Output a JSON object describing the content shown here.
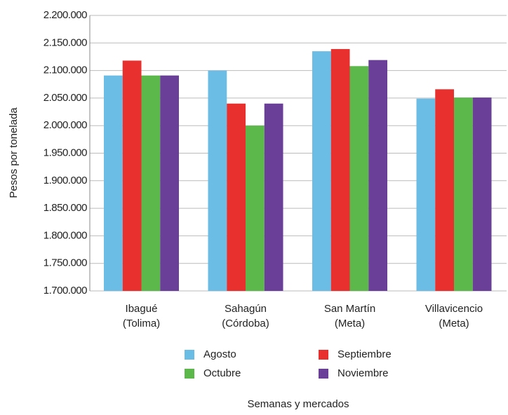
{
  "chart_data": {
    "type": "bar",
    "x_label": "Semanas y mercados",
    "y_label": "Pesos por tonelada",
    "categories": [
      [
        "Ibagué",
        "(Tolima)"
      ],
      [
        "Sahagún",
        "(Córdoba)"
      ],
      [
        "San Martín",
        "(Meta)"
      ],
      [
        "Villavicencio",
        "(Meta)"
      ]
    ],
    "series": [
      {
        "name": "Agosto",
        "color": "#6cbde6",
        "values": [
          2091000,
          2100000,
          2135000,
          2049000
        ]
      },
      {
        "name": "Septiembre",
        "color": "#e8312f",
        "values": [
          2118000,
          2040000,
          2139000,
          2066000
        ]
      },
      {
        "name": "Octubre",
        "color": "#5cb84a",
        "values": [
          2091000,
          2000000,
          2108000,
          2051000
        ]
      },
      {
        "name": "Noviembre",
        "color": "#6a3f98",
        "values": [
          2091000,
          2040000,
          2119000,
          2051000
        ]
      }
    ],
    "ylim": [
      1700000,
      2200000
    ],
    "yticks": [
      {
        "value": 1700000,
        "label": "1.700.000"
      },
      {
        "value": 1750000,
        "label": "1.750.000"
      },
      {
        "value": 1800000,
        "label": "1.800.000"
      },
      {
        "value": 1850000,
        "label": "1.850.000"
      },
      {
        "value": 1900000,
        "label": "1.900.000"
      },
      {
        "value": 1950000,
        "label": "1.950.000"
      },
      {
        "value": 2000000,
        "label": "2.000.000"
      },
      {
        "value": 2050000,
        "label": "2.050.000"
      },
      {
        "value": 2100000,
        "label": "2.100.000"
      },
      {
        "value": 2150000,
        "label": "2.150.000"
      },
      {
        "value": 2200000,
        "label": "2.200.000"
      }
    ],
    "grid": true
  }
}
